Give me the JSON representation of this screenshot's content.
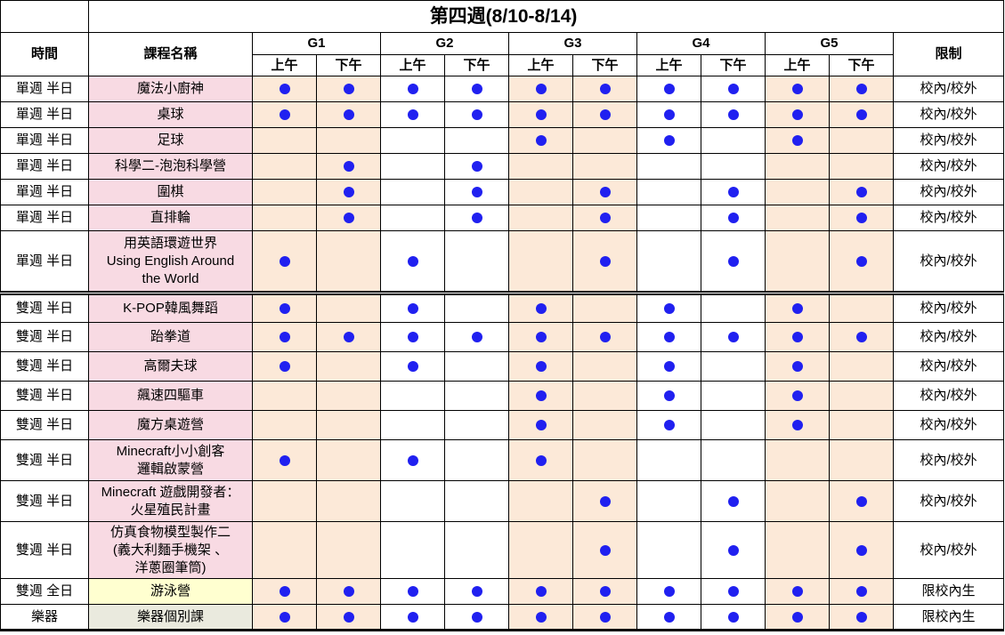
{
  "title": "第四週(8/10-8/14)",
  "header": {
    "time": "時間",
    "course": "課程名稱",
    "groups": [
      "G1",
      "G2",
      "G3",
      "G4",
      "G5"
    ],
    "am": "上午",
    "pm": "下午",
    "restriction": "限制"
  },
  "colors": {
    "peach": "#FCE9D8",
    "pink": "#F8DAE3",
    "yellow": "#FFFFD0",
    "gray": "#EAEADE",
    "dot_blue": "#2020F0",
    "border": "#000000"
  },
  "slot_order": [
    "G1上午",
    "G1下午",
    "G2上午",
    "G2下午",
    "G3上午",
    "G3下午",
    "G4上午",
    "G4下午",
    "G5上午",
    "G5下午"
  ],
  "rows": [
    {
      "time": "單週 半日",
      "course": "魔法小廚神",
      "course_bg": "pink",
      "dots": [
        1,
        1,
        1,
        1,
        1,
        1,
        1,
        1,
        1,
        1
      ],
      "restriction": "校內/校外"
    },
    {
      "time": "單週 半日",
      "course": "桌球",
      "course_bg": "pink",
      "dots": [
        1,
        1,
        1,
        1,
        1,
        1,
        1,
        1,
        1,
        1
      ],
      "restriction": "校內/校外"
    },
    {
      "time": "單週 半日",
      "course": "足球",
      "course_bg": "pink",
      "dots": [
        0,
        0,
        0,
        0,
        1,
        0,
        1,
        0,
        1,
        0
      ],
      "restriction": "校內/校外"
    },
    {
      "time": "單週 半日",
      "course": "科學二-泡泡科學營",
      "course_bg": "pink",
      "dots": [
        0,
        1,
        0,
        1,
        0,
        0,
        0,
        0,
        0,
        0
      ],
      "restriction": "校內/校外"
    },
    {
      "time": "單週 半日",
      "course": "圍棋",
      "course_bg": "pink",
      "dots": [
        0,
        1,
        0,
        1,
        0,
        1,
        0,
        1,
        0,
        1
      ],
      "restriction": "校內/校外"
    },
    {
      "time": "單週 半日",
      "course": "直排輪",
      "course_bg": "pink",
      "dots": [
        0,
        1,
        0,
        1,
        0,
        1,
        0,
        1,
        0,
        1
      ],
      "restriction": "校內/校外"
    },
    {
      "time": "單週 半日",
      "course": "用英語環遊世界\nUsing English Around\nthe World",
      "course_bg": "pink",
      "dots": [
        1,
        0,
        1,
        0,
        0,
        1,
        0,
        1,
        0,
        1
      ],
      "restriction": "校內/校外",
      "section_end": true
    },
    {
      "time": "雙週 半日",
      "course": "K-POP韓風舞蹈",
      "course_bg": "pink",
      "dots": [
        1,
        0,
        1,
        0,
        1,
        0,
        1,
        0,
        1,
        0
      ],
      "restriction": "校內/校外"
    },
    {
      "time": "雙週 半日",
      "course": "跆拳道",
      "course_bg": "pink",
      "dots": [
        1,
        1,
        1,
        1,
        1,
        1,
        1,
        1,
        1,
        1
      ],
      "restriction": "校內/校外"
    },
    {
      "time": "雙週 半日",
      "course": "高爾夫球",
      "course_bg": "pink",
      "dots": [
        1,
        0,
        1,
        0,
        1,
        0,
        1,
        0,
        1,
        0
      ],
      "restriction": "校內/校外"
    },
    {
      "time": "雙週 半日",
      "course": "飆速四驅車",
      "course_bg": "pink",
      "dots": [
        0,
        0,
        0,
        0,
        1,
        0,
        1,
        0,
        1,
        0
      ],
      "restriction": "校內/校外"
    },
    {
      "time": "雙週 半日",
      "course": "魔方桌遊營",
      "course_bg": "pink",
      "dots": [
        0,
        0,
        0,
        0,
        1,
        0,
        1,
        0,
        1,
        0
      ],
      "restriction": "校內/校外"
    },
    {
      "time": "雙週 半日",
      "course": "Minecraft小小創客\n邏輯啟蒙營",
      "course_bg": "pink",
      "dots": [
        1,
        0,
        1,
        0,
        1,
        0,
        0,
        0,
        0,
        0
      ],
      "restriction": "校內/校外"
    },
    {
      "time": "雙週 半日",
      "course": "Minecraft 遊戲開發者：\n火星殖民計畫",
      "course_bg": "pink",
      "dots": [
        0,
        0,
        0,
        0,
        0,
        1,
        0,
        1,
        0,
        1
      ],
      "restriction": "校內/校外"
    },
    {
      "time": "雙週 半日",
      "course": "仿真食物模型製作二\n(義大利麵手機架 、\n洋蔥圈筆筒)",
      "course_bg": "pink",
      "dots": [
        0,
        0,
        0,
        0,
        0,
        1,
        0,
        1,
        0,
        1
      ],
      "restriction": "校內/校外"
    },
    {
      "time": "雙週 全日",
      "course": "游泳營",
      "course_bg": "yellow",
      "dots": [
        1,
        1,
        1,
        1,
        1,
        1,
        1,
        1,
        1,
        1
      ],
      "restriction": "限校內生"
    },
    {
      "time": "樂器",
      "course": "樂器個別課",
      "course_bg": "gray",
      "dots": [
        1,
        1,
        1,
        1,
        1,
        1,
        1,
        1,
        1,
        1
      ],
      "restriction": "限校內生"
    }
  ]
}
